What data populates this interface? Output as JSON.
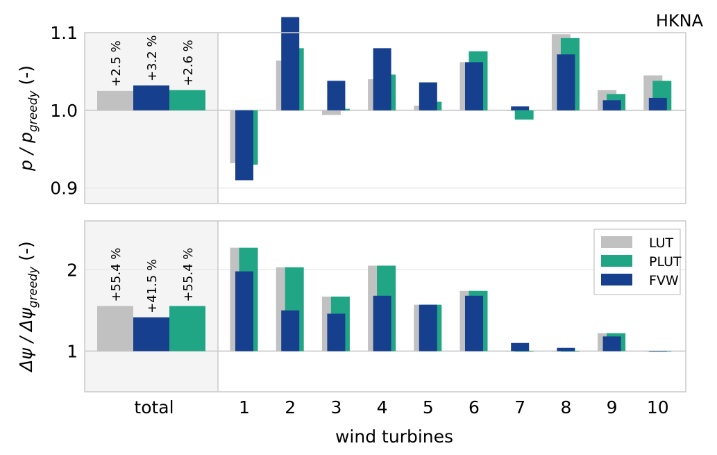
{
  "chart_data": {
    "type": "bar",
    "figure_label": "HKNA",
    "xlabel": "wind turbines",
    "total_label": "total",
    "turbines": [
      "1",
      "2",
      "3",
      "4",
      "5",
      "6",
      "7",
      "8",
      "9",
      "10"
    ],
    "legend": [
      {
        "key": "LUT",
        "label": "LUT",
        "color": "#c1c1c1"
      },
      {
        "key": "PLUT",
        "label": "PLUT",
        "color": "#21a685"
      },
      {
        "key": "FVW",
        "label": "FVW",
        "color": "#163f8e"
      }
    ],
    "legend_position": "upper right of bottom panel",
    "grid": true,
    "panels": [
      {
        "id": "power",
        "ylabel_main": "p / p",
        "ylabel_sub": "greedy",
        "ylabel_unit": "(-)",
        "ylim": [
          0.88,
          1.1
        ],
        "yticks": [
          0.9,
          1.0,
          1.1
        ],
        "ytick_labels": [
          "0.9",
          "1.0",
          "1.1"
        ],
        "baseline": 1.0,
        "total": {
          "LUT": 1.025,
          "FVW": 1.032,
          "PLUT": 1.026
        },
        "total_annotations": [
          "+2.5 %",
          "+3.2 %",
          "+2.6 %"
        ],
        "series": [
          {
            "name": "LUT",
            "values": [
              0.932,
              1.064,
              0.994,
              1.04,
              1.006,
              1.062,
              1.0,
              1.098,
              1.026,
              1.045
            ]
          },
          {
            "name": "PLUT",
            "values": [
              0.93,
              1.08,
              1.002,
              1.046,
              1.011,
              1.076,
              0.988,
              1.093,
              1.021,
              1.038
            ]
          },
          {
            "name": "FVW",
            "values": [
              0.91,
              1.12,
              1.038,
              1.08,
              1.036,
              1.062,
              1.005,
              1.072,
              1.013,
              1.016
            ]
          }
        ]
      },
      {
        "id": "misalignment",
        "ylabel_main": "Δψ / Δψ",
        "ylabel_sub": "greedy",
        "ylabel_unit": "(-)",
        "ylim": [
          0.5,
          2.6
        ],
        "yticks": [
          1,
          2
        ],
        "ytick_labels": [
          "1",
          "2"
        ],
        "baseline": 1.0,
        "total": {
          "LUT": 1.554,
          "FVW": 1.415,
          "PLUT": 1.554
        },
        "total_annotations": [
          "+55.4 %",
          "+41.5 %",
          "+55.4 %"
        ],
        "series": [
          {
            "name": "LUT",
            "values": [
              2.27,
              2.03,
              1.67,
              2.05,
              1.57,
              1.74,
              1.0,
              1.0,
              1.22,
              1.0
            ]
          },
          {
            "name": "PLUT",
            "values": [
              2.27,
              2.03,
              1.67,
              2.05,
              1.57,
              1.74,
              1.0,
              1.0,
              1.22,
              1.0
            ]
          },
          {
            "name": "FVW",
            "values": [
              1.98,
              1.5,
              1.46,
              1.68,
              1.57,
              1.68,
              1.1,
              1.04,
              1.18,
              1.0
            ]
          }
        ]
      }
    ]
  }
}
